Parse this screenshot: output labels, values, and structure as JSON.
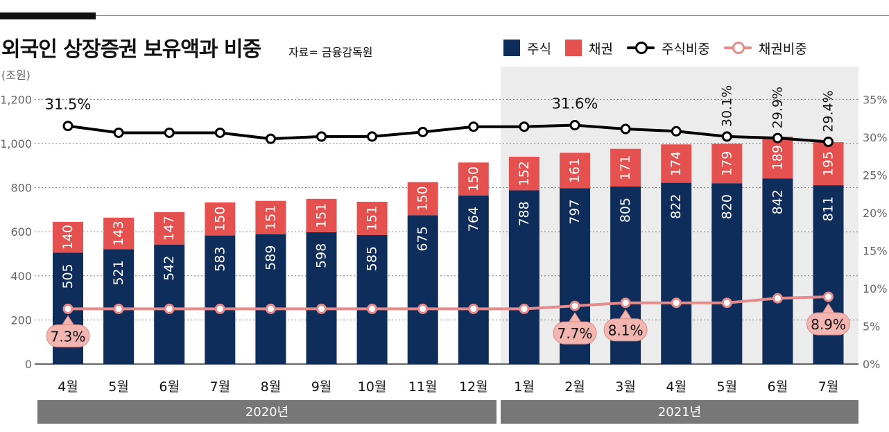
{
  "title": "외국인 상장증권 보유액과 비중",
  "source": "자료= 금융감독원",
  "y_unit": "(조원)",
  "legend": [
    {
      "label": "주식",
      "kind": "bar",
      "color": "#0f2d5b"
    },
    {
      "label": "채권",
      "kind": "bar",
      "color": "#e4514f"
    },
    {
      "label": "주식비중",
      "kind": "line",
      "color": "#000000"
    },
    {
      "label": "채권비중",
      "kind": "line",
      "color": "#e58b8b"
    }
  ],
  "chart_data": {
    "type": "bar",
    "title": "외국인 상장증권 보유액과 비중",
    "categories": [
      "4월",
      "5월",
      "6월",
      "7월",
      "8월",
      "9월",
      "10월",
      "11월",
      "12월",
      "1월",
      "2월",
      "3월",
      "4월",
      "5월",
      "6월",
      "7월"
    ],
    "year_groups": [
      {
        "label": "2020년",
        "count": 9
      },
      {
        "label": "2021년",
        "count": 7
      }
    ],
    "series": [
      {
        "name": "주식",
        "kind": "stacked-bar",
        "color": "#0f2d5b",
        "values": [
          505,
          521,
          542,
          583,
          589,
          598,
          585,
          675,
          764,
          788,
          797,
          805,
          822,
          820,
          842,
          811
        ]
      },
      {
        "name": "채권",
        "kind": "stacked-bar",
        "color": "#e4514f",
        "values": [
          140,
          143,
          147,
          150,
          151,
          151,
          151,
          150,
          150,
          152,
          161,
          171,
          174,
          179,
          189,
          195
        ]
      },
      {
        "name": "주식비중",
        "kind": "line",
        "axis": "right",
        "color": "#000000",
        "values": [
          31.5,
          30.6,
          30.6,
          30.6,
          29.8,
          30.1,
          30.1,
          30.7,
          31.4,
          31.4,
          31.6,
          31.1,
          30.8,
          30.1,
          29.9,
          29.4
        ]
      },
      {
        "name": "채권비중",
        "kind": "line",
        "axis": "right",
        "color": "#e58b8b",
        "values": [
          7.3,
          7.3,
          7.3,
          7.3,
          7.3,
          7.3,
          7.3,
          7.3,
          7.3,
          7.3,
          7.7,
          8.1,
          8.1,
          8.1,
          8.7,
          8.9
        ]
      }
    ],
    "left_axis": {
      "min": 0,
      "max": 1200,
      "ticks": [
        0,
        200,
        400,
        600,
        800,
        1000,
        1200
      ],
      "tick_labels": [
        "0",
        "200",
        "400",
        "600",
        "800",
        "1,000",
        "1,200"
      ]
    },
    "right_axis": {
      "min": 0,
      "max": 35,
      "ticks": [
        0,
        5,
        10,
        15,
        20,
        25,
        30,
        35
      ],
      "tick_labels": [
        "0%",
        "5%",
        "10%",
        "15%",
        "20%",
        "25%",
        "30%",
        "35%"
      ]
    },
    "annotations": [
      {
        "series": "주식비중",
        "index": 0,
        "text": "31.5%",
        "style": "plain"
      },
      {
        "series": "주식비중",
        "index": 10,
        "text": "31.6%",
        "style": "plain"
      },
      {
        "series": "주식비중",
        "index": 13,
        "text": "30.1%",
        "style": "plain-rotated"
      },
      {
        "series": "주식비중",
        "index": 14,
        "text": "29.9%",
        "style": "plain-rotated"
      },
      {
        "series": "주식비중",
        "index": 15,
        "text": "29.4%",
        "style": "plain-rotated"
      },
      {
        "series": "채권비중",
        "index": 0,
        "text": "7.3%",
        "style": "callout"
      },
      {
        "series": "채권비중",
        "index": 10,
        "text": "7.7%",
        "style": "callout"
      },
      {
        "series": "채권비중",
        "index": 11,
        "text": "8.1%",
        "style": "callout"
      },
      {
        "series": "채권비중",
        "index": 15,
        "text": "8.9%",
        "style": "callout"
      }
    ],
    "highlight": {
      "from_index": 9,
      "to_index": 15,
      "color": "#ececec"
    },
    "grid": "dotted-horizontal"
  }
}
